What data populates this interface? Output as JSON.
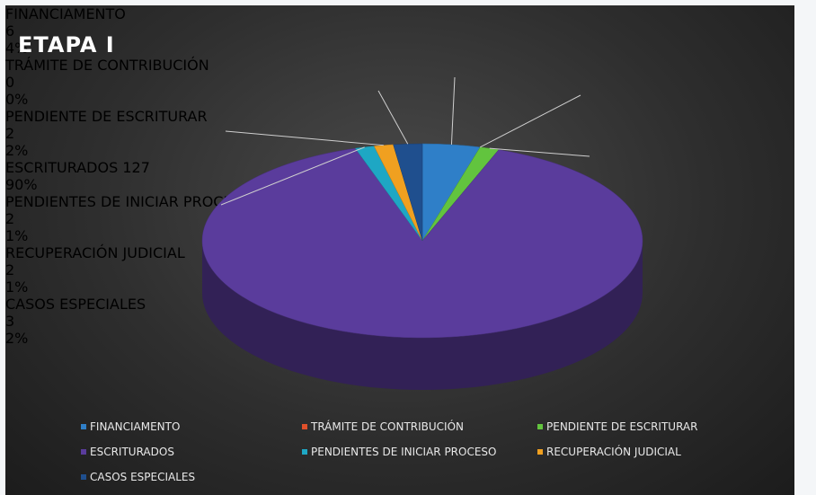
{
  "chart_data": {
    "type": "pie3d",
    "title": "ETAPA I",
    "categories": [
      "FINANCIAMENTO",
      "TRÁMITE DE CONTRIBUCIÓN",
      "PENDIENTE DE ESCRITURAR",
      "ESCRITURADOS",
      "PENDIENTES DE INICIAR PROCESO",
      "RECUPERACIÓN JUDICIAL",
      "CASOS ESPECIALES"
    ],
    "values": [
      6,
      0,
      2,
      127,
      2,
      2,
      3
    ],
    "percent_labels": [
      "4%",
      "0%",
      "2%",
      "90%",
      "1%",
      "1%",
      "2%"
    ],
    "colors": [
      "#2f7fc8",
      "#e0502a",
      "#62c43e",
      "#5a3c9c",
      "#1ea7c4",
      "#f0a020",
      "#1f4f8e"
    ],
    "legend": "bottom"
  }
}
